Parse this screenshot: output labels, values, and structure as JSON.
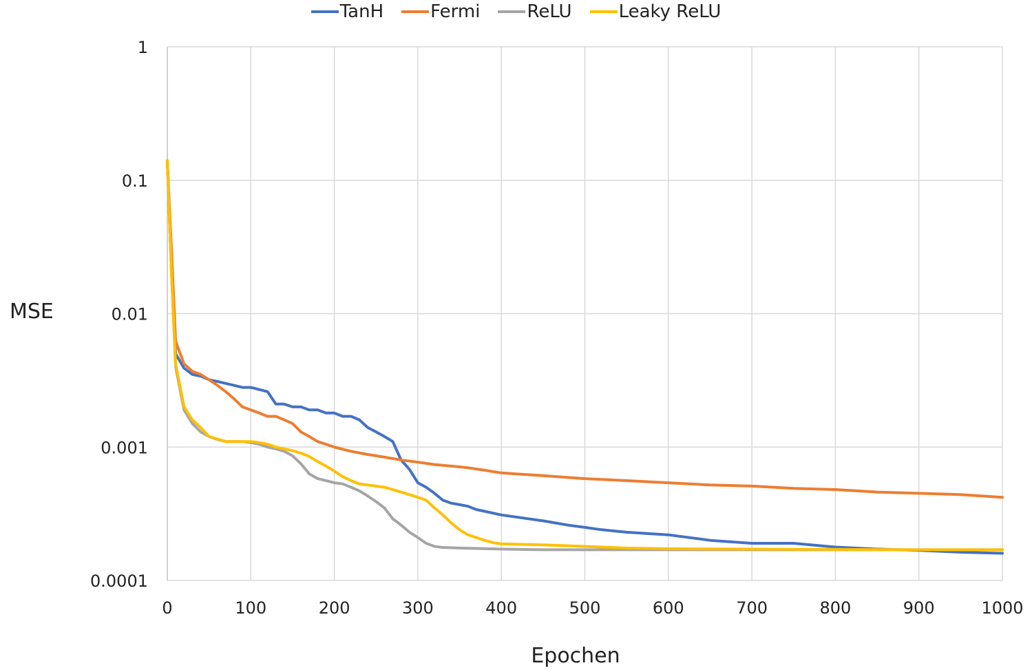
{
  "chart_data": {
    "type": "line",
    "title": "",
    "xlabel": "Epochen",
    "ylabel": "MSE",
    "xlim": [
      0,
      1000
    ],
    "ylim": [
      0.0001,
      1
    ],
    "yscale": "log",
    "grid": true,
    "legend_position": "top-center",
    "x_ticks": [
      "0",
      "100",
      "200",
      "300",
      "400",
      "500",
      "600",
      "700",
      "800",
      "900",
      "1000"
    ],
    "y_ticks": [
      "1",
      "0.1",
      "0.01",
      "0.001",
      "0.0001"
    ],
    "y_tick_values": [
      1,
      0.1,
      0.01,
      0.001,
      0.0001
    ],
    "series": [
      {
        "name": "TanH",
        "color": "#4472C4",
        "points": [
          [
            0,
            0.14
          ],
          [
            5,
            0.02
          ],
          [
            10,
            0.005
          ],
          [
            20,
            0.0039
          ],
          [
            30,
            0.0035
          ],
          [
            40,
            0.0034
          ],
          [
            50,
            0.0032
          ],
          [
            60,
            0.0031
          ],
          [
            70,
            0.003
          ],
          [
            80,
            0.0029
          ],
          [
            90,
            0.0028
          ],
          [
            100,
            0.0028
          ],
          [
            110,
            0.0027
          ],
          [
            120,
            0.0026
          ],
          [
            130,
            0.0021
          ],
          [
            140,
            0.0021
          ],
          [
            150,
            0.002
          ],
          [
            160,
            0.002
          ],
          [
            170,
            0.0019
          ],
          [
            180,
            0.0019
          ],
          [
            190,
            0.0018
          ],
          [
            200,
            0.0018
          ],
          [
            210,
            0.0017
          ],
          [
            220,
            0.0017
          ],
          [
            230,
            0.0016
          ],
          [
            240,
            0.0014
          ],
          [
            250,
            0.0013
          ],
          [
            260,
            0.0012
          ],
          [
            270,
            0.0011
          ],
          [
            280,
            0.0008
          ],
          [
            290,
            0.00068
          ],
          [
            300,
            0.00054
          ],
          [
            310,
            0.0005
          ],
          [
            320,
            0.00045
          ],
          [
            330,
            0.0004
          ],
          [
            340,
            0.00038
          ],
          [
            350,
            0.00037
          ],
          [
            360,
            0.00036
          ],
          [
            370,
            0.00034
          ],
          [
            380,
            0.00033
          ],
          [
            400,
            0.00031
          ],
          [
            450,
            0.00028
          ],
          [
            480,
            0.00026
          ],
          [
            500,
            0.00025
          ],
          [
            520,
            0.00024
          ],
          [
            550,
            0.00023
          ],
          [
            600,
            0.00022
          ],
          [
            650,
            0.0002
          ],
          [
            700,
            0.00019
          ],
          [
            750,
            0.00019
          ],
          [
            800,
            0.000178
          ],
          [
            850,
            0.000172
          ],
          [
            900,
            0.000168
          ],
          [
            950,
            0.000163
          ],
          [
            1000,
            0.00016
          ]
        ]
      },
      {
        "name": "Fermi",
        "color": "#ED7D31",
        "points": [
          [
            0,
            0.14
          ],
          [
            5,
            0.03
          ],
          [
            10,
            0.0062
          ],
          [
            20,
            0.0042
          ],
          [
            30,
            0.0037
          ],
          [
            40,
            0.0035
          ],
          [
            50,
            0.0032
          ],
          [
            60,
            0.0029
          ],
          [
            70,
            0.0026
          ],
          [
            80,
            0.0023
          ],
          [
            90,
            0.002
          ],
          [
            100,
            0.0019
          ],
          [
            110,
            0.0018
          ],
          [
            120,
            0.0017
          ],
          [
            130,
            0.0017
          ],
          [
            140,
            0.0016
          ],
          [
            150,
            0.0015
          ],
          [
            160,
            0.0013
          ],
          [
            170,
            0.0012
          ],
          [
            180,
            0.0011
          ],
          [
            190,
            0.00105
          ],
          [
            200,
            0.001
          ],
          [
            220,
            0.00093
          ],
          [
            240,
            0.00088
          ],
          [
            260,
            0.00084
          ],
          [
            280,
            0.0008
          ],
          [
            300,
            0.00077
          ],
          [
            320,
            0.00074
          ],
          [
            340,
            0.00072
          ],
          [
            360,
            0.0007
          ],
          [
            380,
            0.00067
          ],
          [
            400,
            0.00064
          ],
          [
            450,
            0.00061
          ],
          [
            500,
            0.00058
          ],
          [
            550,
            0.00056
          ],
          [
            600,
            0.00054
          ],
          [
            650,
            0.00052
          ],
          [
            700,
            0.00051
          ],
          [
            750,
            0.00049
          ],
          [
            800,
            0.00048
          ],
          [
            850,
            0.00046
          ],
          [
            900,
            0.00045
          ],
          [
            950,
            0.00044
          ],
          [
            1000,
            0.00042
          ]
        ]
      },
      {
        "name": "ReLU",
        "color": "#A5A5A5",
        "points": [
          [
            0,
            0.14
          ],
          [
            5,
            0.02
          ],
          [
            10,
            0.004
          ],
          [
            20,
            0.0019
          ],
          [
            30,
            0.0015
          ],
          [
            40,
            0.0013
          ],
          [
            50,
            0.0012
          ],
          [
            60,
            0.00114
          ],
          [
            70,
            0.0011
          ],
          [
            80,
            0.0011
          ],
          [
            90,
            0.0011
          ],
          [
            100,
            0.00108
          ],
          [
            110,
            0.00105
          ],
          [
            120,
            0.001
          ],
          [
            130,
            0.00097
          ],
          [
            140,
            0.00093
          ],
          [
            150,
            0.00086
          ],
          [
            160,
            0.00075
          ],
          [
            170,
            0.00063
          ],
          [
            180,
            0.00058
          ],
          [
            190,
            0.00056
          ],
          [
            200,
            0.00054
          ],
          [
            210,
            0.00053
          ],
          [
            220,
            0.0005
          ],
          [
            230,
            0.00047
          ],
          [
            240,
            0.00043
          ],
          [
            250,
            0.00039
          ],
          [
            260,
            0.00035
          ],
          [
            270,
            0.00029
          ],
          [
            280,
            0.00026
          ],
          [
            290,
            0.00023
          ],
          [
            300,
            0.00021
          ],
          [
            310,
            0.00019
          ],
          [
            320,
            0.00018
          ],
          [
            330,
            0.000177
          ],
          [
            350,
            0.000175
          ],
          [
            400,
            0.000172
          ],
          [
            450,
            0.00017
          ],
          [
            500,
            0.00017
          ],
          [
            600,
            0.00017
          ],
          [
            700,
            0.00017
          ],
          [
            800,
            0.00017
          ],
          [
            900,
            0.00017
          ],
          [
            1000,
            0.00017
          ]
        ]
      },
      {
        "name": "Leaky ReLU",
        "color": "#FFC000",
        "points": [
          [
            0,
            0.14
          ],
          [
            5,
            0.02
          ],
          [
            10,
            0.0042
          ],
          [
            20,
            0.002
          ],
          [
            30,
            0.0016
          ],
          [
            40,
            0.0014
          ],
          [
            50,
            0.0012
          ],
          [
            60,
            0.00115
          ],
          [
            70,
            0.0011
          ],
          [
            80,
            0.0011
          ],
          [
            90,
            0.0011
          ],
          [
            100,
            0.0011
          ],
          [
            110,
            0.00108
          ],
          [
            120,
            0.00105
          ],
          [
            130,
            0.001
          ],
          [
            140,
            0.00097
          ],
          [
            150,
            0.00094
          ],
          [
            160,
            0.0009
          ],
          [
            170,
            0.00085
          ],
          [
            180,
            0.00078
          ],
          [
            190,
            0.00072
          ],
          [
            200,
            0.00066
          ],
          [
            210,
            0.0006
          ],
          [
            220,
            0.00056
          ],
          [
            230,
            0.00053
          ],
          [
            240,
            0.00052
          ],
          [
            250,
            0.00051
          ],
          [
            260,
            0.0005
          ],
          [
            270,
            0.00048
          ],
          [
            280,
            0.00046
          ],
          [
            290,
            0.00044
          ],
          [
            300,
            0.00042
          ],
          [
            310,
            0.0004
          ],
          [
            320,
            0.00035
          ],
          [
            330,
            0.00031
          ],
          [
            340,
            0.00027
          ],
          [
            350,
            0.00024
          ],
          [
            360,
            0.00022
          ],
          [
            370,
            0.00021
          ],
          [
            380,
            0.0002
          ],
          [
            390,
            0.000192
          ],
          [
            400,
            0.000188
          ],
          [
            450,
            0.000185
          ],
          [
            500,
            0.00018
          ],
          [
            550,
            0.000175
          ],
          [
            600,
            0.000173
          ],
          [
            700,
            0.000172
          ],
          [
            800,
            0.000171
          ],
          [
            900,
            0.00017
          ],
          [
            1000,
            0.00017
          ]
        ]
      }
    ]
  }
}
